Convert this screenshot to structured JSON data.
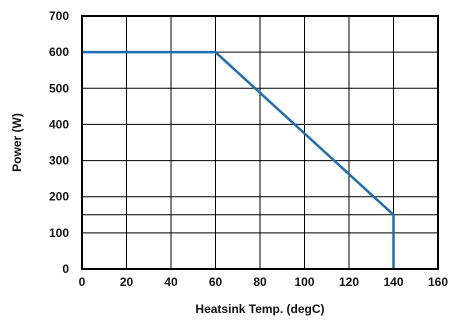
{
  "chart_data": {
    "type": "line",
    "title": "",
    "xlabel": "Heatsink Temp. (degC)",
    "ylabel": "Power (W)",
    "xlim": [
      0,
      160
    ],
    "ylim": [
      0,
      700
    ],
    "x_ticks": [
      0,
      20,
      40,
      60,
      80,
      100,
      120,
      140,
      160
    ],
    "y_ticks": [
      0,
      100,
      200,
      300,
      400,
      500,
      600,
      700
    ],
    "x_tick_labels": [
      "0",
      "20",
      "40",
      "60",
      "80",
      "100",
      "120",
      "140",
      "160"
    ],
    "y_tick_labels": [
      "0",
      "100",
      "200",
      "300",
      "400",
      "500",
      "600",
      "700"
    ],
    "extra_gridlines_y": [
      150
    ],
    "grid": true,
    "legend": "none",
    "series": [
      {
        "color": "#1f6fb0",
        "x": [
          0,
          60,
          140,
          140
        ],
        "y": [
          600,
          600,
          150,
          0
        ]
      }
    ]
  }
}
